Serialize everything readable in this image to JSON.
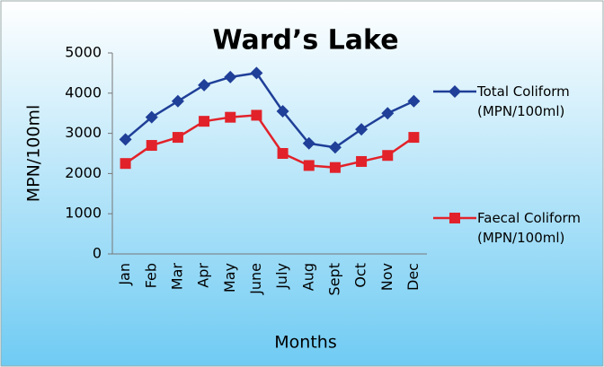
{
  "chart_data": {
    "type": "line",
    "title": "Ward’s Lake",
    "x_label": "Months",
    "y_label": "MPN/100ml",
    "categories": [
      "Jan",
      "Feb",
      "Mar",
      "Apr",
      "May",
      "June",
      "July",
      "Aug",
      "Sept",
      "Oct",
      "Nov",
      "Dec"
    ],
    "series": [
      {
        "name": "Total Coliform (MPN/100ml)",
        "color": "#1f3f98",
        "values": [
          2850,
          3400,
          3800,
          4200,
          4400,
          4500,
          3550,
          2750,
          2650,
          3100,
          3500,
          3800
        ]
      },
      {
        "name": "Faecal Coliform (MPN/100ml)",
        "color": "#e2222a",
        "values": [
          2250,
          2700,
          2900,
          3300,
          3400,
          3450,
          2500,
          2200,
          2150,
          2300,
          2450,
          2900
        ]
      }
    ],
    "ylim": [
      0,
      5000
    ],
    "yticks": [
      0,
      1000,
      2000,
      3000,
      4000,
      5000
    ],
    "grid": false
  }
}
